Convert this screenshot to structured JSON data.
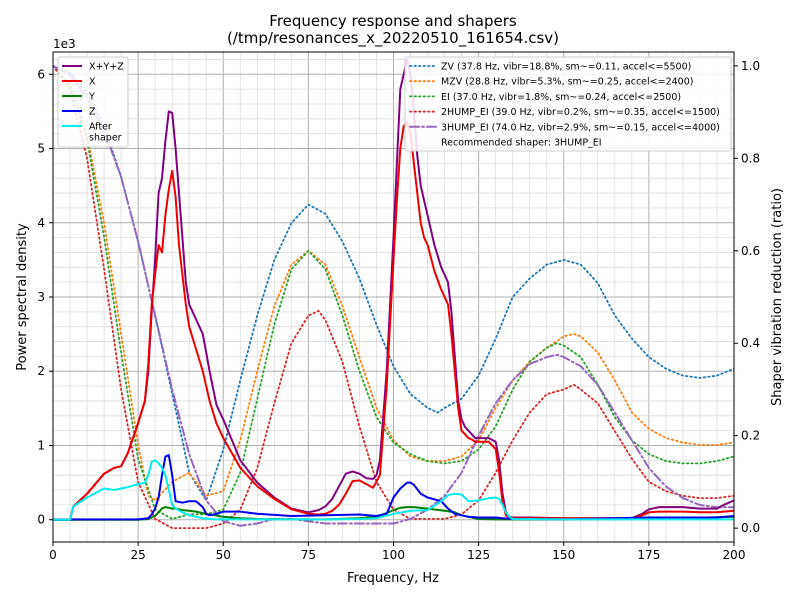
{
  "chart_data": {
    "type": "line",
    "title": "Frequency response and shapers",
    "subtitle": "(/tmp/resonances_x_20220510_161654.csv)",
    "xlabel": "Frequency, Hz",
    "ylabel": "Power spectral density",
    "y2label": "Shaper vibration reduction (ratio)",
    "yscale_label": "1e3",
    "xlim": [
      0,
      200
    ],
    "ylim": [
      -300,
      6300
    ],
    "y2lim": [
      -0.03,
      1.03
    ],
    "xticks": [
      0,
      25,
      50,
      75,
      100,
      125,
      150,
      175,
      200
    ],
    "yticks": [
      0,
      1000,
      2000,
      3000,
      4000,
      5000,
      6000
    ],
    "ytick_labels": [
      "0",
      "1",
      "2",
      "3",
      "4",
      "5",
      "6"
    ],
    "y2ticks": [
      0.0,
      0.2,
      0.4,
      0.6,
      0.8,
      1.0
    ],
    "y2tick_labels": [
      "0.0",
      "0.2",
      "0.4",
      "0.6",
      "0.8",
      "1.0"
    ],
    "grid": true,
    "legend_left_position": "top-left",
    "legend_right_position": "top-right",
    "recommended_text": "Recommended shaper: 3HUMP_EI",
    "psd_series": [
      {
        "name": "X+Y+Z",
        "color": "#800080",
        "x": [
          0,
          5,
          6,
          10,
          15,
          18,
          20,
          22,
          25,
          27,
          28,
          29,
          30,
          31,
          32,
          33,
          34,
          35,
          36,
          37,
          38,
          39,
          40,
          41,
          42,
          44,
          46,
          48,
          50,
          55,
          60,
          65,
          70,
          75,
          78,
          80,
          82,
          84,
          86,
          88,
          90,
          92,
          94,
          95,
          96,
          98,
          100,
          101,
          102,
          103,
          104,
          105,
          106,
          107,
          108,
          109,
          110,
          112,
          114,
          116,
          117,
          118,
          119,
          120,
          121,
          122,
          123,
          124,
          125,
          126,
          128,
          130,
          131,
          132,
          133,
          134,
          135,
          140,
          150,
          160,
          170,
          173,
          175,
          178,
          180,
          185,
          190,
          195,
          197,
          200
        ],
        "y": [
          0,
          0,
          180,
          350,
          620,
          700,
          720,
          900,
          1300,
          1600,
          2000,
          2800,
          3500,
          4400,
          4600,
          5100,
          5500,
          5480,
          5000,
          4400,
          3800,
          3200,
          2900,
          2800,
          2700,
          2500,
          2000,
          1550,
          1350,
          800,
          500,
          300,
          150,
          100,
          130,
          180,
          280,
          450,
          620,
          650,
          620,
          560,
          550,
          600,
          800,
          2000,
          3800,
          4800,
          5800,
          6000,
          6200,
          6000,
          5500,
          4900,
          4500,
          4300,
          4100,
          3700,
          3400,
          3200,
          2800,
          2200,
          1600,
          1350,
          1250,
          1200,
          1150,
          1100,
          1100,
          1100,
          1100,
          1050,
          800,
          350,
          100,
          40,
          30,
          30,
          20,
          20,
          20,
          80,
          140,
          170,
          170,
          170,
          150,
          150,
          200,
          260
        ]
      },
      {
        "name": "X",
        "color": "#ee0000",
        "x": [
          0,
          5,
          6,
          10,
          15,
          18,
          20,
          22,
          25,
          27,
          28,
          29,
          30,
          31,
          32,
          33,
          34,
          35,
          36,
          37,
          38,
          39,
          40,
          42,
          44,
          46,
          48,
          50,
          55,
          60,
          65,
          70,
          75,
          78,
          80,
          82,
          84,
          86,
          88,
          90,
          92,
          94,
          96,
          98,
          100,
          101,
          102,
          103,
          104,
          105,
          106,
          107,
          108,
          109,
          110,
          112,
          114,
          116,
          117,
          118,
          119,
          120,
          121,
          122,
          123,
          124,
          125,
          126,
          128,
          130,
          131,
          132,
          133,
          134,
          135,
          140,
          150,
          160,
          170,
          173,
          175,
          178,
          180,
          185,
          190,
          195,
          197,
          200
        ],
        "y": [
          0,
          0,
          180,
          350,
          620,
          700,
          720,
          900,
          1300,
          1600,
          2100,
          2900,
          3300,
          3700,
          3600,
          4100,
          4450,
          4700,
          4350,
          3700,
          3300,
          2900,
          2600,
          2300,
          2000,
          1600,
          1300,
          1100,
          700,
          450,
          280,
          140,
          80,
          70,
          80,
          120,
          200,
          350,
          520,
          530,
          480,
          430,
          600,
          1800,
          3500,
          4300,
          5000,
          5300,
          5350,
          5200,
          4800,
          4400,
          4000,
          3800,
          3700,
          3350,
          3100,
          2900,
          2500,
          2000,
          1500,
          1200,
          1150,
          1100,
          1080,
          1050,
          1050,
          1050,
          1050,
          950,
          650,
          250,
          60,
          30,
          20,
          20,
          20,
          20,
          20,
          60,
          100,
          110,
          110,
          110,
          100,
          100,
          110,
          120
        ]
      },
      {
        "name": "Y",
        "color": "#008000",
        "x": [
          0,
          25,
          28,
          30,
          32,
          33,
          34,
          35,
          36,
          38,
          40,
          42,
          45,
          50,
          55,
          60,
          70,
          80,
          90,
          95,
          98,
          100,
          102,
          104,
          106,
          110,
          115,
          118,
          120,
          125,
          130,
          135,
          150,
          175,
          200
        ],
        "y": [
          0,
          0,
          10,
          50,
          150,
          170,
          160,
          150,
          150,
          130,
          120,
          110,
          80,
          40,
          20,
          10,
          5,
          5,
          20,
          40,
          90,
          130,
          160,
          170,
          170,
          150,
          120,
          100,
          60,
          10,
          5,
          5,
          5,
          10,
          40
        ]
      },
      {
        "name": "Z",
        "color": "#0000ee",
        "x": [
          0,
          5,
          6,
          25,
          28,
          29,
          30,
          31,
          32,
          33,
          34,
          35,
          36,
          38,
          40,
          42,
          44,
          45,
          46,
          48,
          50,
          55,
          60,
          70,
          80,
          90,
          95,
          98,
          100,
          102,
          104,
          105,
          106,
          108,
          110,
          114,
          116,
          118,
          120,
          122,
          125,
          130,
          132,
          134,
          136,
          150,
          175,
          195,
          200
        ],
        "y": [
          0,
          0,
          5,
          5,
          20,
          70,
          150,
          300,
          600,
          850,
          870,
          600,
          250,
          230,
          250,
          250,
          170,
          80,
          60,
          80,
          110,
          110,
          80,
          50,
          60,
          70,
          50,
          80,
          300,
          420,
          500,
          500,
          470,
          350,
          300,
          250,
          150,
          80,
          60,
          40,
          30,
          30,
          20,
          15,
          10,
          5,
          30,
          30,
          50
        ]
      },
      {
        "name": "After\nshaper",
        "color": "#00eeee",
        "x": [
          0,
          5,
          6,
          10,
          15,
          18,
          20,
          22,
          25,
          27,
          28,
          29,
          30,
          31,
          32,
          33,
          34,
          35,
          36,
          38,
          40,
          42,
          44,
          46,
          48,
          50,
          55,
          60,
          70,
          80,
          90,
          95,
          100,
          105,
          110,
          114,
          116,
          118,
          120,
          122,
          125,
          128,
          130,
          131,
          132,
          133,
          134,
          135,
          150,
          175,
          200
        ],
        "y": [
          0,
          0,
          180,
          300,
          420,
          400,
          420,
          440,
          480,
          500,
          600,
          780,
          800,
          760,
          700,
          600,
          400,
          200,
          150,
          100,
          60,
          40,
          20,
          10,
          5,
          5,
          5,
          5,
          5,
          5,
          10,
          20,
          80,
          120,
          130,
          250,
          330,
          350,
          340,
          250,
          260,
          290,
          300,
          280,
          200,
          100,
          40,
          10,
          5,
          5,
          5
        ]
      }
    ],
    "shaper_series": [
      {
        "name": "ZV (37.8 Hz, vibr=18.8%, sm~=0.11, accel<=5500)",
        "color": "#1f77b4",
        "dash": "dotted",
        "x": [
          0,
          5,
          10,
          15,
          20,
          25,
          30,
          35,
          38,
          40,
          45,
          50,
          55,
          60,
          65,
          70,
          75,
          80,
          85,
          90,
          95,
          100,
          105,
          110,
          113,
          115,
          120,
          125,
          130,
          135,
          140,
          145,
          150,
          155,
          160,
          165,
          170,
          175,
          180,
          185,
          190,
          195,
          200
        ],
        "y": [
          1.0,
          0.985,
          0.94,
          0.87,
          0.76,
          0.62,
          0.46,
          0.29,
          0.19,
          0.12,
          0.06,
          0.17,
          0.32,
          0.46,
          0.58,
          0.66,
          0.7,
          0.68,
          0.62,
          0.54,
          0.44,
          0.35,
          0.29,
          0.26,
          0.25,
          0.26,
          0.28,
          0.33,
          0.41,
          0.5,
          0.54,
          0.57,
          0.58,
          0.57,
          0.53,
          0.46,
          0.41,
          0.37,
          0.345,
          0.33,
          0.325,
          0.33,
          0.345
        ]
      },
      {
        "name": "MZV (28.8 Hz, vibr=5.3%, sm~=0.25, accel<=2400)",
        "color": "#ff7f0e",
        "dash": "dotted",
        "x": [
          0,
          5,
          10,
          15,
          20,
          25,
          28,
          30,
          35,
          40,
          45,
          50,
          55,
          60,
          65,
          70,
          75,
          80,
          85,
          90,
          95,
          100,
          105,
          110,
          115,
          120,
          125,
          130,
          135,
          140,
          145,
          150,
          153,
          155,
          160,
          165,
          170,
          175,
          180,
          185,
          190,
          195,
          200
        ],
        "y": [
          1.0,
          0.96,
          0.85,
          0.66,
          0.42,
          0.18,
          0.07,
          0.06,
          0.1,
          0.12,
          0.07,
          0.08,
          0.19,
          0.34,
          0.48,
          0.57,
          0.6,
          0.57,
          0.48,
          0.37,
          0.26,
          0.19,
          0.155,
          0.145,
          0.145,
          0.155,
          0.19,
          0.26,
          0.32,
          0.36,
          0.39,
          0.415,
          0.42,
          0.415,
          0.38,
          0.32,
          0.25,
          0.215,
          0.195,
          0.185,
          0.18,
          0.18,
          0.185
        ]
      },
      {
        "name": "EI (37.0 Hz, vibr=1.8%, sm~=0.24, accel<=2500)",
        "color": "#2ca02c",
        "dash": "dotted",
        "x": [
          0,
          5,
          10,
          15,
          20,
          25,
          30,
          35,
          40,
          45,
          50,
          55,
          60,
          65,
          70,
          75,
          80,
          85,
          90,
          95,
          100,
          105,
          110,
          115,
          120,
          125,
          130,
          135,
          140,
          145,
          148,
          150,
          155,
          160,
          165,
          170,
          175,
          180,
          185,
          190,
          195,
          200
        ],
        "y": [
          1.0,
          0.96,
          0.84,
          0.63,
          0.38,
          0.15,
          0.04,
          0.02,
          0.03,
          0.03,
          0.04,
          0.12,
          0.28,
          0.44,
          0.56,
          0.6,
          0.56,
          0.46,
          0.34,
          0.24,
          0.185,
          0.16,
          0.145,
          0.14,
          0.145,
          0.17,
          0.22,
          0.3,
          0.36,
          0.39,
          0.4,
          0.395,
          0.37,
          0.31,
          0.24,
          0.19,
          0.16,
          0.145,
          0.14,
          0.14,
          0.145,
          0.155
        ]
      },
      {
        "name": "2HUMP_EI (39.0 Hz, vibr=0.2%, sm~=0.35, accel<=1500)",
        "color": "#d62728",
        "dash": "dotted",
        "x": [
          0,
          5,
          10,
          15,
          20,
          25,
          30,
          35,
          40,
          45,
          50,
          55,
          60,
          65,
          70,
          75,
          78,
          80,
          85,
          90,
          95,
          100,
          105,
          110,
          115,
          120,
          125,
          130,
          135,
          140,
          145,
          150,
          153,
          155,
          160,
          165,
          170,
          175,
          180,
          185,
          190,
          195,
          200
        ],
        "y": [
          1.0,
          0.95,
          0.8,
          0.56,
          0.3,
          0.1,
          0.02,
          0.0,
          0.0,
          0.0,
          0.01,
          0.04,
          0.13,
          0.27,
          0.4,
          0.46,
          0.47,
          0.45,
          0.36,
          0.22,
          0.1,
          0.04,
          0.02,
          0.02,
          0.02,
          0.03,
          0.06,
          0.12,
          0.19,
          0.25,
          0.29,
          0.3,
          0.31,
          0.3,
          0.27,
          0.21,
          0.15,
          0.1,
          0.08,
          0.07,
          0.065,
          0.065,
          0.07
        ]
      },
      {
        "name": "3HUMP_EI (74.0 Hz, vibr=2.9%, sm~=0.15, accel<=4000)",
        "color": "#9467bd",
        "dash": "dashdot",
        "x": [
          0,
          5,
          10,
          15,
          20,
          25,
          30,
          35,
          40,
          45,
          50,
          55,
          60,
          65,
          70,
          75,
          80,
          85,
          90,
          95,
          100,
          105,
          110,
          115,
          120,
          125,
          130,
          135,
          140,
          145,
          148,
          150,
          155,
          160,
          165,
          170,
          175,
          180,
          185,
          190,
          195,
          200
        ],
        "y": [
          1.0,
          0.98,
          0.93,
          0.86,
          0.76,
          0.62,
          0.46,
          0.3,
          0.16,
          0.06,
          0.015,
          0.005,
          0.01,
          0.02,
          0.02,
          0.015,
          0.01,
          0.01,
          0.01,
          0.01,
          0.01,
          0.02,
          0.04,
          0.07,
          0.12,
          0.2,
          0.27,
          0.32,
          0.355,
          0.37,
          0.375,
          0.37,
          0.35,
          0.31,
          0.25,
          0.19,
          0.13,
          0.09,
          0.065,
          0.05,
          0.045,
          0.045
        ]
      }
    ]
  }
}
